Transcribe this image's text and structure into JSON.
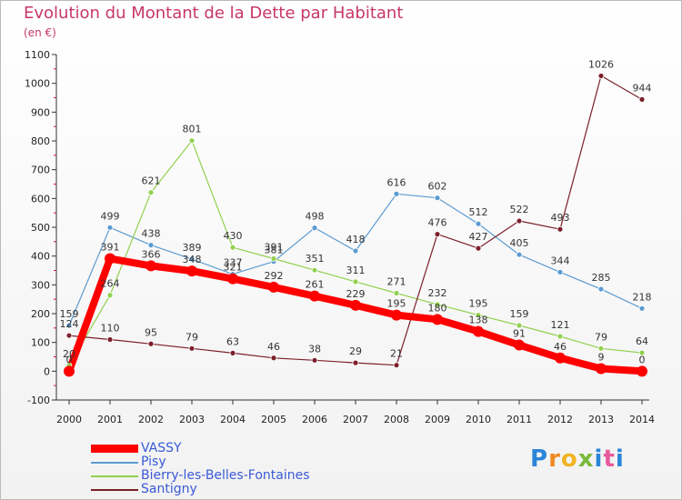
{
  "header": {
    "title": "Evolution du Montant de la Dette par Habitant",
    "unit": "(en €)"
  },
  "logo": {
    "text": "Proxiti"
  },
  "chart_data": {
    "type": "line",
    "title": "Evolution du Montant de la Dette par Habitant",
    "ylabel": "(en €)",
    "xlabel": "",
    "categories": [
      "2000",
      "2001",
      "2002",
      "2003",
      "2004",
      "2005",
      "2006",
      "2007",
      "2008",
      "2009",
      "2010",
      "2011",
      "2012",
      "2013",
      "2014"
    ],
    "ylim": [
      -100,
      1100
    ],
    "yticks": [
      -100,
      0,
      100,
      200,
      300,
      400,
      500,
      600,
      700,
      800,
      900,
      1000,
      1100
    ],
    "grid": false,
    "legend_position": "bottom-left",
    "series": [
      {
        "name": "VASSY",
        "color": "#ff0000",
        "width": 8,
        "values": [
          0,
          391,
          366,
          348,
          321,
          292,
          261,
          229,
          195,
          180,
          138,
          91,
          46,
          9,
          0
        ],
        "labels": [
          "0",
          "391",
          "366",
          "348",
          "321",
          "292",
          "261",
          "229",
          "195",
          "180",
          "138",
          "91",
          "46",
          "9",
          "0"
        ]
      },
      {
        "name": "Pisy",
        "color": "#5b9bd1",
        "width": 1.2,
        "values": [
          159,
          499,
          438,
          389,
          337,
          381,
          498,
          418,
          616,
          602,
          512,
          405,
          344,
          285,
          218
        ],
        "labels": [
          "159",
          "499",
          "438",
          "389",
          "337",
          "381",
          "498",
          "418",
          "616",
          "602",
          "512",
          "405",
          "344",
          "285",
          "218"
        ]
      },
      {
        "name": "Bierry-les-Belles-Fontaines",
        "color": "#92d050",
        "width": 1.2,
        "values": [
          20,
          264,
          621,
          801,
          430,
          391,
          351,
          311,
          271,
          232,
          195,
          159,
          121,
          79,
          64
        ],
        "labels": [
          "20",
          "264",
          "621",
          "801",
          "430",
          "391",
          "351",
          "311",
          "271",
          "232",
          "195",
          "159",
          "121",
          "79",
          "64"
        ]
      },
      {
        "name": "Santigny",
        "color": "#7b1f2a",
        "width": 1.2,
        "values": [
          124,
          110,
          95,
          79,
          63,
          46,
          38,
          29,
          21,
          476,
          427,
          522,
          493,
          1026,
          944
        ],
        "labels": [
          "124",
          "110",
          "95",
          "79",
          "63",
          "46",
          "38",
          "29",
          "21",
          "476",
          "427",
          "522",
          "493",
          "1026",
          "944"
        ]
      }
    ]
  }
}
